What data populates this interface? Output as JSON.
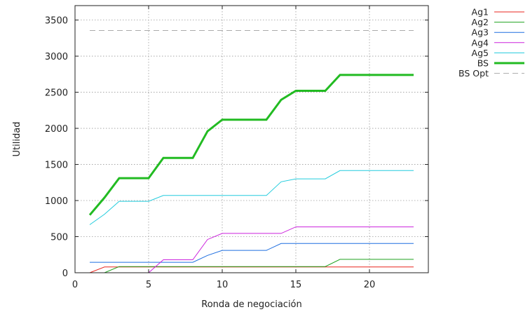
{
  "chart_data": {
    "type": "line",
    "xlabel": "Ronda de negociación",
    "ylabel": "Utilidad",
    "xlim": [
      0,
      24
    ],
    "ylim": [
      0,
      3700
    ],
    "xticks": [
      0,
      5,
      10,
      15,
      20
    ],
    "yticks": [
      0,
      500,
      1000,
      1500,
      2000,
      2500,
      3000,
      3500
    ],
    "grid": true,
    "legend_position": "outside-top-right",
    "series": [
      {
        "name": "Ag1",
        "color": "#e8271f",
        "style": "solid",
        "width": 1,
        "points": [
          [
            1,
            0
          ],
          [
            2,
            80
          ],
          [
            3,
            80
          ],
          [
            23,
            80
          ]
        ]
      },
      {
        "name": "Ag2",
        "color": "#1fa21f",
        "style": "solid",
        "width": 1,
        "points": [
          [
            2,
            0
          ],
          [
            3,
            85
          ],
          [
            17,
            85
          ],
          [
            18,
            185
          ],
          [
            23,
            185
          ]
        ]
      },
      {
        "name": "Ag3",
        "color": "#1f6fe0",
        "style": "solid",
        "width": 1,
        "points": [
          [
            1,
            145
          ],
          [
            8,
            145
          ],
          [
            9,
            240
          ],
          [
            10,
            310
          ],
          [
            13,
            310
          ],
          [
            14,
            405
          ],
          [
            23,
            405
          ]
        ]
      },
      {
        "name": "Ag4",
        "color": "#cc22dd",
        "style": "solid",
        "width": 1,
        "points": [
          [
            5,
            0
          ],
          [
            6,
            180
          ],
          [
            8,
            180
          ],
          [
            9,
            460
          ],
          [
            10,
            545
          ],
          [
            14,
            545
          ],
          [
            15,
            635
          ],
          [
            23,
            635
          ]
        ]
      },
      {
        "name": "Ag5",
        "color": "#22ccdd",
        "style": "solid",
        "width": 1,
        "points": [
          [
            1,
            665
          ],
          [
            2,
            810
          ],
          [
            3,
            990
          ],
          [
            5,
            990
          ],
          [
            6,
            1070
          ],
          [
            13,
            1070
          ],
          [
            14,
            1260
          ],
          [
            15,
            1300
          ],
          [
            17,
            1300
          ],
          [
            18,
            1415
          ],
          [
            23,
            1415
          ]
        ]
      },
      {
        "name": "BS",
        "color": "#22bb22",
        "style": "solid",
        "width": 3,
        "points": [
          [
            1,
            800
          ],
          [
            2,
            1040
          ],
          [
            3,
            1310
          ],
          [
            5,
            1310
          ],
          [
            6,
            1590
          ],
          [
            8,
            1590
          ],
          [
            9,
            1960
          ],
          [
            10,
            2120
          ],
          [
            13,
            2120
          ],
          [
            14,
            2395
          ],
          [
            15,
            2520
          ],
          [
            17,
            2520
          ],
          [
            18,
            2740
          ],
          [
            23,
            2740
          ]
        ]
      },
      {
        "name": "BS Opt",
        "color": "#aaaaaa",
        "style": "dashed",
        "width": 1,
        "points": [
          [
            1,
            3355
          ],
          [
            23,
            3355
          ]
        ]
      }
    ]
  }
}
